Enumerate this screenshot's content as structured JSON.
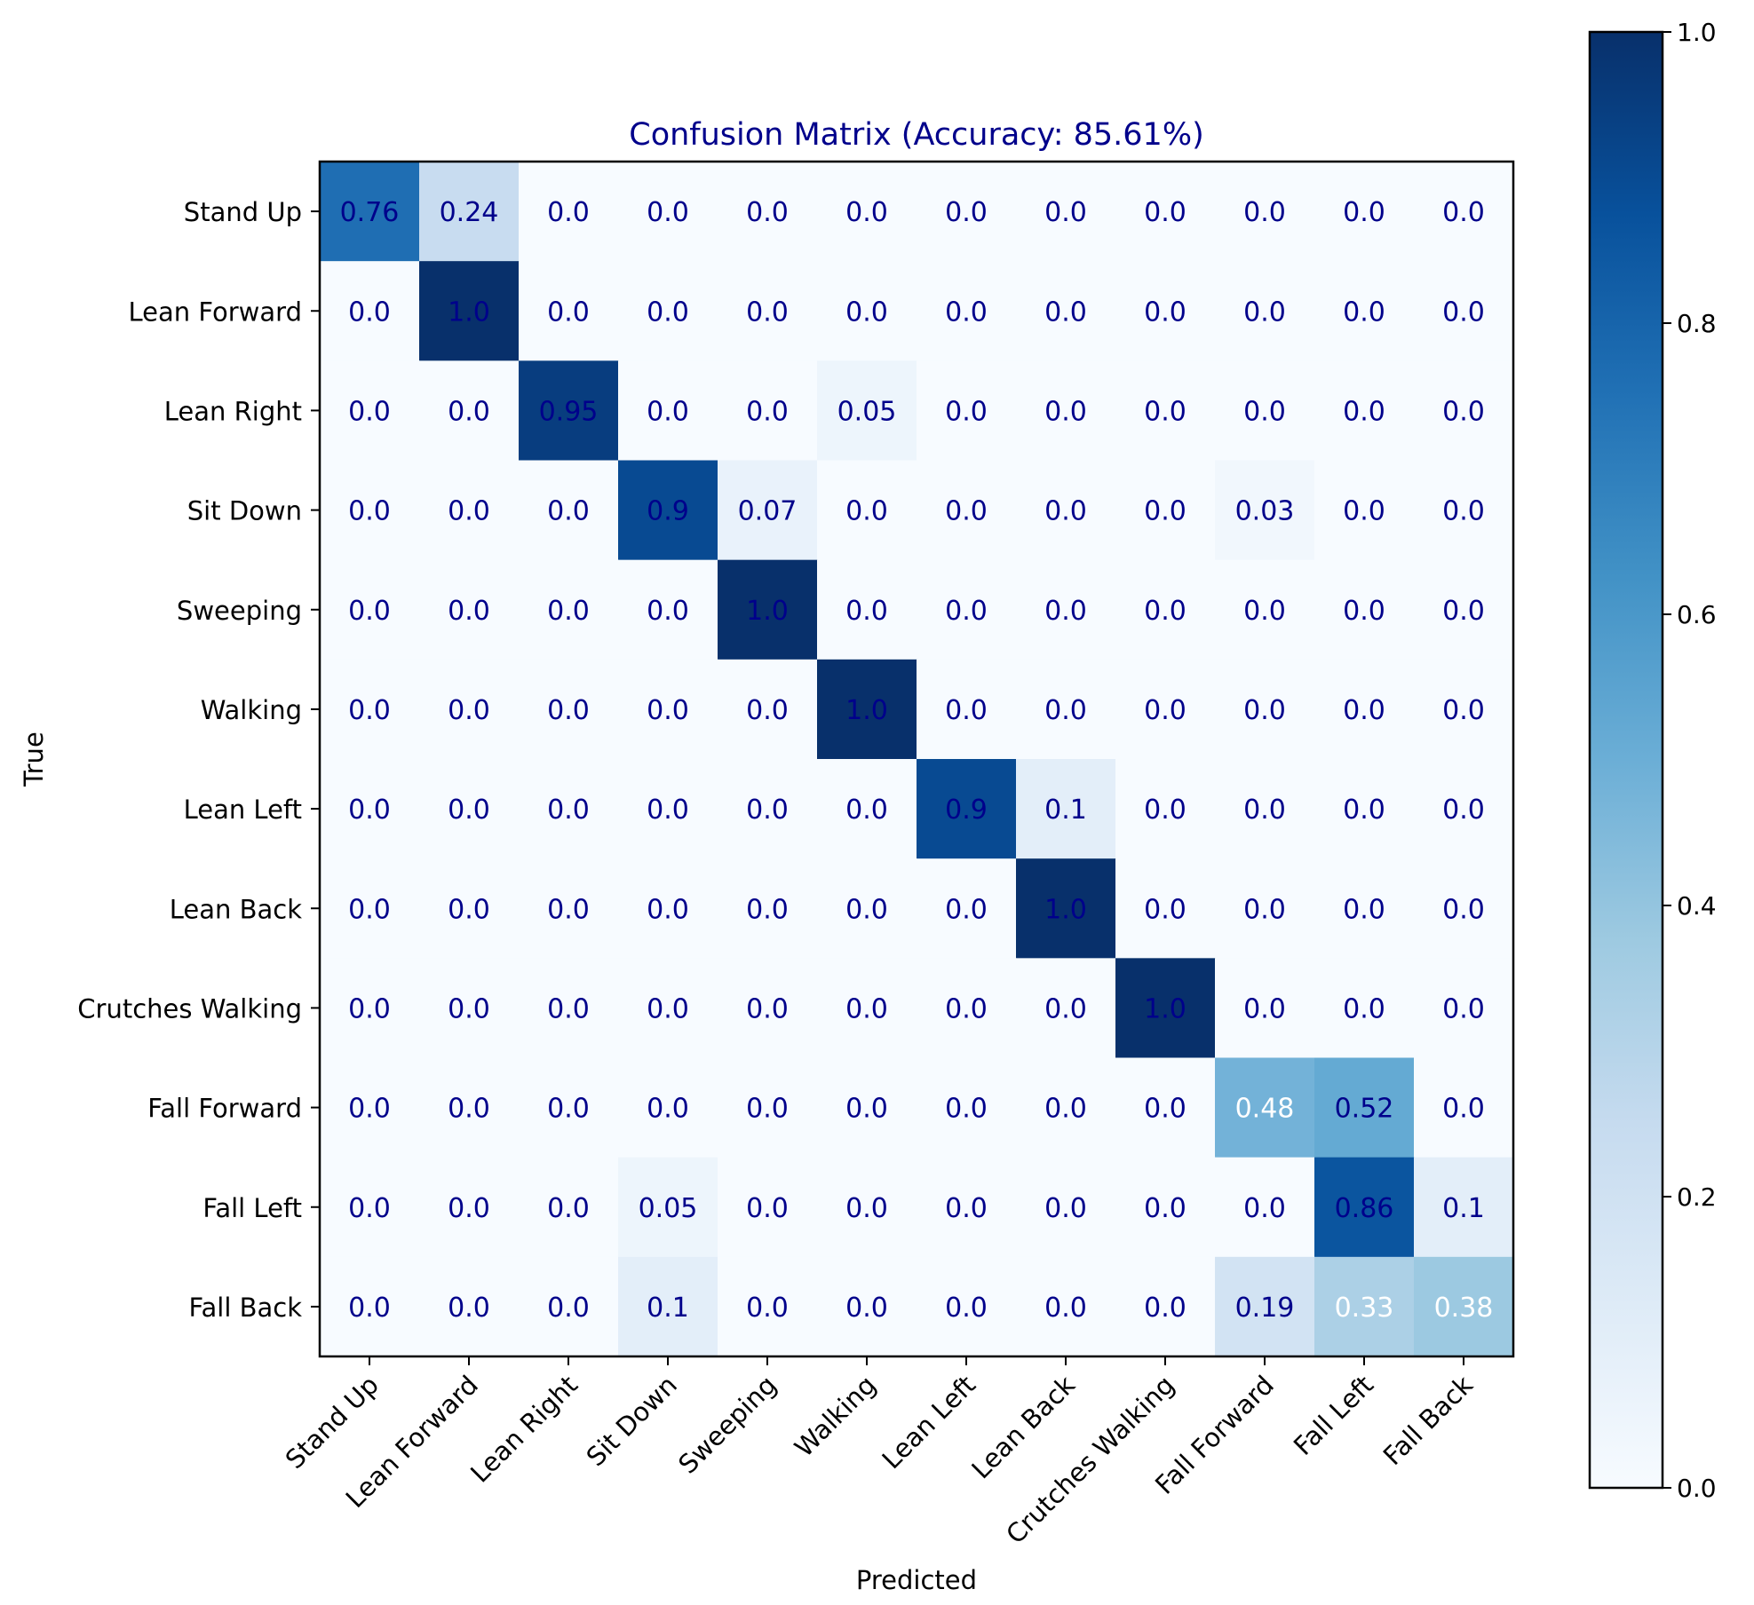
{
  "chart_data": {
    "type": "heatmap",
    "title": "Confusion Matrix (Accuracy: 85.61%)",
    "xlabel": "Predicted",
    "ylabel": "True",
    "x_categories": [
      "Stand Up",
      "Lean Forward",
      "Lean Right",
      "Sit Down",
      "Sweeping",
      "Walking",
      "Lean Left",
      "Lean Back",
      "Crutches Walking",
      "Fall Forward",
      "Fall Left",
      "Fall Back"
    ],
    "y_categories": [
      "Stand Up",
      "Lean Forward",
      "Lean Right",
      "Sit Down",
      "Sweeping ",
      "Walking",
      "Lean Left",
      "Lean Back",
      "Crutches Walking",
      "Fall Forward",
      "Fall Left",
      "Fall Back"
    ],
    "values": [
      [
        0.76,
        0.24,
        0.0,
        0.0,
        0.0,
        0.0,
        0.0,
        0.0,
        0.0,
        0.0,
        0.0,
        0.0
      ],
      [
        0.0,
        1.0,
        0.0,
        0.0,
        0.0,
        0.0,
        0.0,
        0.0,
        0.0,
        0.0,
        0.0,
        0.0
      ],
      [
        0.0,
        0.0,
        0.95,
        0.0,
        0.0,
        0.05,
        0.0,
        0.0,
        0.0,
        0.0,
        0.0,
        0.0
      ],
      [
        0.0,
        0.0,
        0.0,
        0.9,
        0.07,
        0.0,
        0.0,
        0.0,
        0.0,
        0.03,
        0.0,
        0.0
      ],
      [
        0.0,
        0.0,
        0.0,
        0.0,
        1.0,
        0.0,
        0.0,
        0.0,
        0.0,
        0.0,
        0.0,
        0.0
      ],
      [
        0.0,
        0.0,
        0.0,
        0.0,
        0.0,
        1.0,
        0.0,
        0.0,
        0.0,
        0.0,
        0.0,
        0.0
      ],
      [
        0.0,
        0.0,
        0.0,
        0.0,
        0.0,
        0.0,
        0.9,
        0.1,
        0.0,
        0.0,
        0.0,
        0.0
      ],
      [
        0.0,
        0.0,
        0.0,
        0.0,
        0.0,
        0.0,
        0.0,
        1.0,
        0.0,
        0.0,
        0.0,
        0.0
      ],
      [
        0.0,
        0.0,
        0.0,
        0.0,
        0.0,
        0.0,
        0.0,
        0.0,
        1.0,
        0.0,
        0.0,
        0.0
      ],
      [
        0.0,
        0.0,
        0.0,
        0.0,
        0.0,
        0.0,
        0.0,
        0.0,
        0.0,
        0.48,
        0.52,
        0.0
      ],
      [
        0.0,
        0.0,
        0.0,
        0.05,
        0.0,
        0.0,
        0.0,
        0.0,
        0.0,
        0.0,
        0.86,
        0.1
      ],
      [
        0.0,
        0.0,
        0.0,
        0.1,
        0.0,
        0.0,
        0.0,
        0.0,
        0.0,
        0.19,
        0.33,
        0.38
      ]
    ],
    "value_labels": [
      [
        "0.76",
        "0.24",
        "0.0",
        "0.0",
        "0.0",
        "0.0",
        "0.0",
        "0.0",
        "0.0",
        "0.0",
        "0.0",
        "0.0"
      ],
      [
        "0.0",
        "1.0",
        "0.0",
        "0.0",
        "0.0",
        "0.0",
        "0.0",
        "0.0",
        "0.0",
        "0.0",
        "0.0",
        "0.0"
      ],
      [
        "0.0",
        "0.0",
        "0.95",
        "0.0",
        "0.0",
        "0.05",
        "0.0",
        "0.0",
        "0.0",
        "0.0",
        "0.0",
        "0.0"
      ],
      [
        "0.0",
        "0.0",
        "0.0",
        "0.9",
        "0.07",
        "0.0",
        "0.0",
        "0.0",
        "0.0",
        "0.03",
        "0.0",
        "0.0"
      ],
      [
        "0.0",
        "0.0",
        "0.0",
        "0.0",
        "1.0",
        "0.0",
        "0.0",
        "0.0",
        "0.0",
        "0.0",
        "0.0",
        "0.0"
      ],
      [
        "0.0",
        "0.0",
        "0.0",
        "0.0",
        "0.0",
        "1.0",
        "0.0",
        "0.0",
        "0.0",
        "0.0",
        "0.0",
        "0.0"
      ],
      [
        "0.0",
        "0.0",
        "0.0",
        "0.0",
        "0.0",
        "0.0",
        "0.9",
        "0.1",
        "0.0",
        "0.0",
        "0.0",
        "0.0"
      ],
      [
        "0.0",
        "0.0",
        "0.0",
        "0.0",
        "0.0",
        "0.0",
        "0.0",
        "1.0",
        "0.0",
        "0.0",
        "0.0",
        "0.0"
      ],
      [
        "0.0",
        "0.0",
        "0.0",
        "0.0",
        "0.0",
        "0.0",
        "0.0",
        "0.0",
        "1.0",
        "0.0",
        "0.0",
        "0.0"
      ],
      [
        "0.0",
        "0.0",
        "0.0",
        "0.0",
        "0.0",
        "0.0",
        "0.0",
        "0.0",
        "0.0",
        "0.48",
        "0.52",
        "0.0"
      ],
      [
        "0.0",
        "0.0",
        "0.0",
        "0.05",
        "0.0",
        "0.0",
        "0.0",
        "0.0",
        "0.0",
        "0.0",
        "0.86",
        "0.1"
      ],
      [
        "0.0",
        "0.0",
        "0.0",
        "0.1",
        "0.0",
        "0.0",
        "0.0",
        "0.0",
        "0.0",
        "0.19",
        "0.33",
        "0.38"
      ]
    ],
    "colorbar": {
      "range": [
        0.0,
        1.0
      ],
      "ticks": [
        0.0,
        0.2,
        0.4,
        0.6,
        0.8,
        1.0
      ],
      "tick_labels": [
        "0.0",
        "0.2",
        "0.4",
        "0.6",
        "0.8",
        "1.0"
      ]
    },
    "colormap": "Blues",
    "colormap_stops": [
      "#f7fbff",
      "#deebf7",
      "#c6dbef",
      "#9ecae1",
      "#6baed6",
      "#4292c6",
      "#2171b5",
      "#08519c",
      "#08306b"
    ],
    "annotation_color_light": "#ffffff",
    "annotation_color_dark": "#00008b",
    "title_color": "#00008b",
    "text_color": "#000000"
  }
}
